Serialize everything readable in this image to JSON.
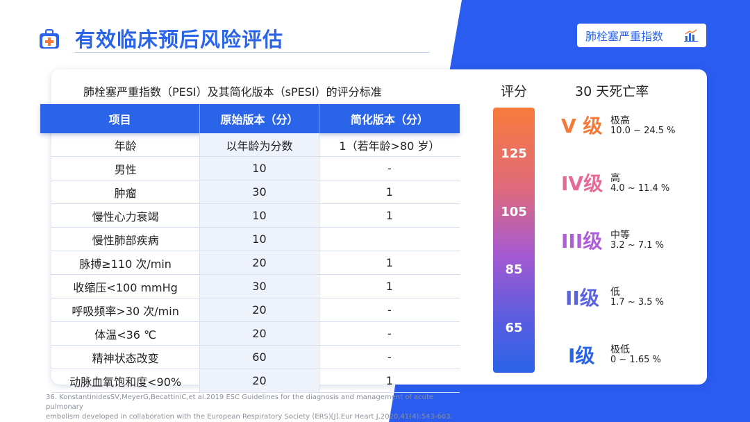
{
  "header": {
    "title": "有效临床预后风险评估",
    "tag_label": "肺栓塞严重指数"
  },
  "table": {
    "caption": "肺栓塞严重指数（PESI）及其简化版本（sPESI）的评分标准",
    "columns": [
      "项目",
      "原始版本（分）",
      "简化版本（分）"
    ],
    "rows": [
      [
        "年龄",
        "以年龄为分数",
        "1（若年龄>80 岁）"
      ],
      [
        "男性",
        "10",
        "-"
      ],
      [
        "肿瘤",
        "30",
        "1"
      ],
      [
        "慢性心力衰竭",
        "10",
        "1"
      ],
      [
        "慢性肺部疾病",
        "10",
        ""
      ],
      [
        "脉搏≥110 次/min",
        "20",
        "1"
      ],
      [
        "收缩压<100 mmHg",
        "30",
        "1"
      ],
      [
        "呼吸频率>30 次/min",
        "20",
        "-"
      ],
      [
        "体温<36 ℃",
        "20",
        "-"
      ],
      [
        "精神状态改变",
        "60",
        "-"
      ],
      [
        "动脉血氧饱和度<90%",
        "20",
        "1"
      ]
    ]
  },
  "scale": {
    "score_header": "评分",
    "rate_header": "30 天死亡率",
    "ticks": [
      "125",
      "105",
      "85",
      "65"
    ],
    "levels": [
      {
        "grade": "V 级",
        "name": "极高",
        "range": "10.0 ~ 24.5 %",
        "color": "#f47a3a"
      },
      {
        "grade": "IV级",
        "name": "高",
        "range": "4.0 ~ 11.4 %",
        "color": "#e56a96"
      },
      {
        "grade": "III级",
        "name": "中等",
        "range": "3.2 ~ 7.1 %",
        "color": "#b05ed6"
      },
      {
        "grade": "II级",
        "name": "低",
        "range": "1.7 ~ 3.5 %",
        "color": "#5a63e0"
      },
      {
        "grade": "I级",
        "name": "极低",
        "range": "0 ~ 1.65 %",
        "color": "#2a64e8"
      }
    ]
  },
  "footnote": {
    "line1": "36. KonstantinidesSV,MeyerG,BecattiniC,et al.2019 ESC Guidelines for the diagnosis and management of acute pulmonary",
    "line2": "embolism developed in collaboration with the European Respiratory Society (ERS)[J].Eur Heart J,2020,41(4):543-603."
  },
  "colors": {
    "accent": "#2a64e8",
    "background_shape": "#2a5cf0"
  },
  "icons": {
    "logo": "medical-kit-icon",
    "tag_icon": "bar-chart-icon"
  }
}
